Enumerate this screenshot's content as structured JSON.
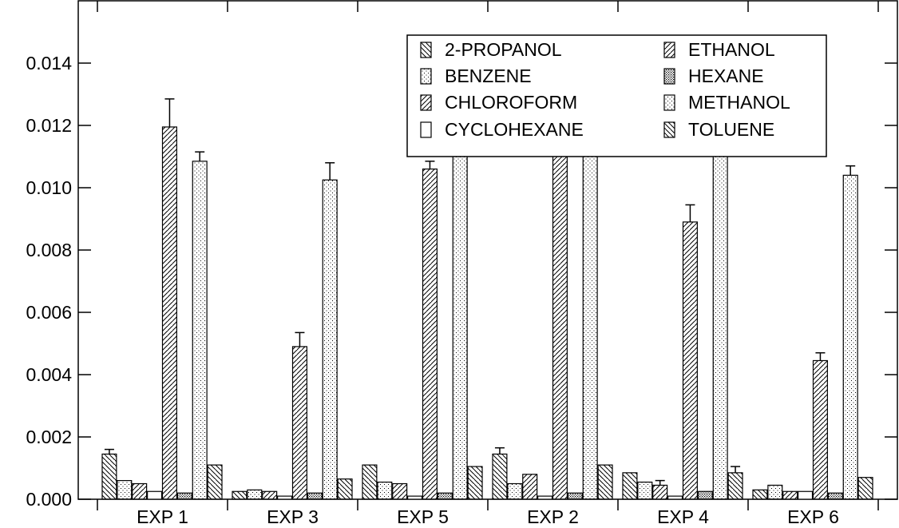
{
  "chart_data": {
    "type": "bar",
    "categories": [
      "EXP 1",
      "EXP 3",
      "EXP 5",
      "EXP 2",
      "EXP 4",
      "EXP 6"
    ],
    "ylim": [
      0,
      0.016
    ],
    "y_ticks": [
      "0.000",
      "0.002",
      "0.004",
      "0.006",
      "0.008",
      "0.010",
      "0.012",
      "0.014"
    ],
    "y_tick_values": [
      0,
      0.002,
      0.004,
      0.006,
      0.008,
      0.01,
      0.012,
      0.014
    ],
    "legend_position": "top-right",
    "grid": false,
    "series": [
      {
        "name": "2-PROPANOL",
        "pattern": "hatch-neg",
        "values": [
          0.00145,
          0.00025,
          0.0011,
          0.00145,
          0.00085,
          0.0003
        ],
        "errors": [
          0.00015,
          0,
          0,
          0.0002,
          0,
          0
        ]
      },
      {
        "name": "BENZENE",
        "pattern": "dots-sparse",
        "values": [
          0.0006,
          0.0003,
          0.00055,
          0.0005,
          0.00055,
          0.00045
        ],
        "errors": [
          0,
          0,
          0,
          0,
          0,
          0
        ]
      },
      {
        "name": "CHLOROFORM",
        "pattern": "hatch-pos",
        "values": [
          0.0005,
          0.00025,
          0.0005,
          0.0008,
          0.00045,
          0.00025
        ],
        "errors": [
          0,
          0,
          0,
          0,
          0.00015,
          0
        ]
      },
      {
        "name": "CYCLOHEXANE",
        "pattern": "blank",
        "values": [
          0.00025,
          0.0001,
          0.0001,
          0.0001,
          0.0001,
          0.00025
        ],
        "errors": [
          0,
          0,
          0,
          0,
          0,
          0
        ]
      },
      {
        "name": "ETHANOL",
        "pattern": "hatch-pos",
        "values": [
          0.01195,
          0.0049,
          0.0106,
          0.01175,
          0.0089,
          0.00445
        ],
        "errors": [
          0.0009,
          0.00045,
          0.00025,
          0.00035,
          0.00055,
          0.00025
        ]
      },
      {
        "name": "HEXANE",
        "pattern": "dots-dense",
        "values": [
          0.0002,
          0.0002,
          0.0002,
          0.0002,
          0.00025,
          0.0002
        ],
        "errors": [
          0,
          0,
          0,
          0,
          0,
          0
        ]
      },
      {
        "name": "METHANOL",
        "pattern": "dots-sparse",
        "values": [
          0.01085,
          0.01025,
          0.011,
          0.01135,
          0.01285,
          0.0104
        ],
        "errors": [
          0.0003,
          0.00055,
          0.00025,
          0.00035,
          0.0005,
          0.0003
        ]
      },
      {
        "name": "TOLUENE",
        "pattern": "hatch-neg",
        "values": [
          0.0011,
          0.00065,
          0.00105,
          0.0011,
          0.00085,
          0.0007
        ],
        "errors": [
          0,
          0,
          0,
          0,
          0.0002,
          0
        ]
      }
    ]
  }
}
